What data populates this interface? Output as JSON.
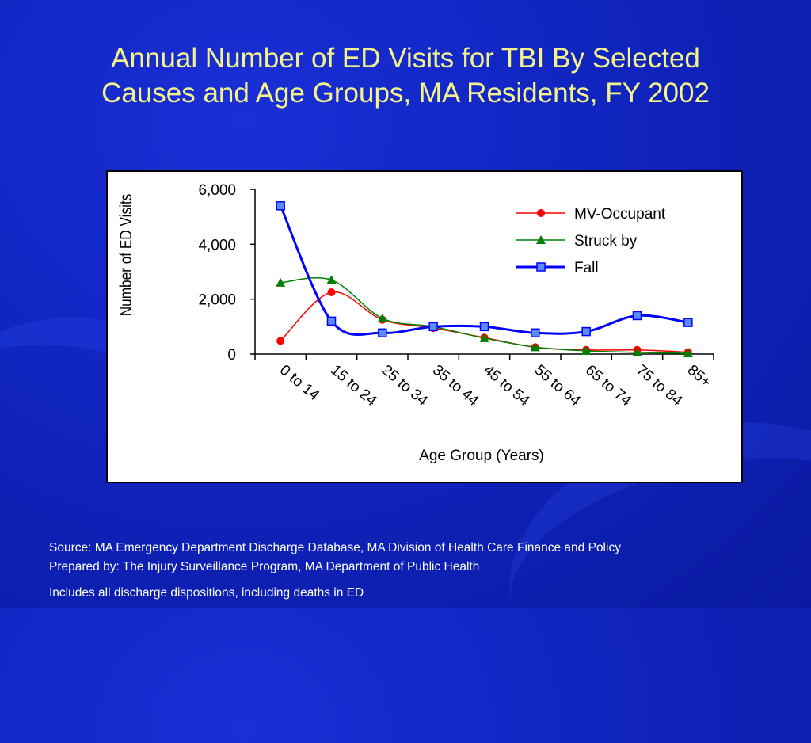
{
  "slide": {
    "title_line1": "Annual Number of ED Visits for TBI By Selected",
    "title_line2": "Causes and Age Groups, MA Residents, FY 2002",
    "source_line": "Source: MA Emergency Department Discharge Database, MA Division of Health Care Finance and Policy",
    "prepared_line": "Prepared by: The Injury Surveillance Program, MA Department of Public Health",
    "note_line": "Includes all discharge dispositions, including deaths in ED"
  },
  "chart_data": {
    "type": "line",
    "title": "",
    "xlabel": "Age Group (Years)",
    "ylabel": "Number of ED Visits",
    "ylim": [
      0,
      6000
    ],
    "yticks": [
      0,
      2000,
      4000,
      6000
    ],
    "ytick_labels": [
      "0",
      "2,000",
      "4,000",
      "6,000"
    ],
    "categories": [
      "0 to 14",
      "15 to 24",
      "25 to 34",
      "35 to 44",
      "45 to 54",
      "55 to 64",
      "65 to 74",
      "75 to 84",
      "85+"
    ],
    "legend_position": "top-right",
    "grid": false,
    "series": [
      {
        "name": "MV-Occupant",
        "color": "#ff0000",
        "marker": "circle",
        "values": [
          480,
          2250,
          1250,
          950,
          600,
          250,
          150,
          150,
          70
        ]
      },
      {
        "name": "Struck by",
        "color": "#008000",
        "marker": "triangle",
        "values": [
          2600,
          2700,
          1300,
          1000,
          580,
          250,
          120,
          60,
          30
        ]
      },
      {
        "name": "Fall",
        "color": "#0000ff",
        "marker": "square",
        "values": [
          5400,
          1200,
          770,
          1000,
          1000,
          770,
          820,
          1400,
          1150
        ]
      }
    ]
  }
}
